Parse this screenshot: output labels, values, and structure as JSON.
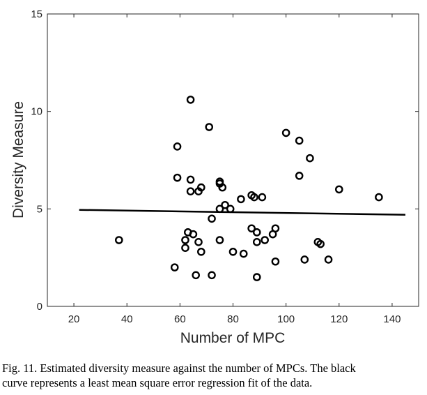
{
  "chart_data": {
    "type": "scatter",
    "xlabel": "Number of MPC",
    "ylabel": "Diversity Measure",
    "xlim": [
      10,
      150
    ],
    "ylim": [
      0,
      15
    ],
    "xticks": [
      20,
      40,
      60,
      80,
      100,
      120,
      140
    ],
    "yticks": [
      0,
      5,
      10,
      15
    ],
    "grid": false,
    "points": [
      [
        37,
        3.4
      ],
      [
        58,
        2.0
      ],
      [
        59,
        8.2
      ],
      [
        59,
        6.6
      ],
      [
        62,
        3.0
      ],
      [
        62,
        3.4
      ],
      [
        63,
        3.8
      ],
      [
        64,
        10.6
      ],
      [
        64,
        6.5
      ],
      [
        64,
        5.9
      ],
      [
        65,
        3.7
      ],
      [
        66,
        1.6
      ],
      [
        67,
        3.3
      ],
      [
        67,
        5.9
      ],
      [
        68,
        6.1
      ],
      [
        68,
        2.8
      ],
      [
        71,
        9.2
      ],
      [
        72,
        1.6
      ],
      [
        72,
        4.5
      ],
      [
        75,
        6.4
      ],
      [
        75,
        6.3
      ],
      [
        75,
        3.4
      ],
      [
        75,
        5.0
      ],
      [
        76,
        6.1
      ],
      [
        77,
        5.2
      ],
      [
        79,
        5.0
      ],
      [
        80,
        2.8
      ],
      [
        83,
        5.5
      ],
      [
        84,
        2.7
      ],
      [
        87,
        5.7
      ],
      [
        87,
        4.0
      ],
      [
        88,
        5.6
      ],
      [
        89,
        3.8
      ],
      [
        89,
        3.3
      ],
      [
        89,
        1.5
      ],
      [
        91,
        5.6
      ],
      [
        92,
        3.4
      ],
      [
        95,
        3.7
      ],
      [
        96,
        4.0
      ],
      [
        96,
        2.3
      ],
      [
        100,
        8.9
      ],
      [
        105,
        8.5
      ],
      [
        105,
        6.7
      ],
      [
        107,
        2.4
      ],
      [
        109,
        7.6
      ],
      [
        112,
        3.3
      ],
      [
        113,
        3.2
      ],
      [
        116,
        2.4
      ],
      [
        120,
        6.0
      ],
      [
        135,
        5.6
      ]
    ],
    "fit_line": {
      "x": [
        22,
        145
      ],
      "y": [
        4.95,
        4.7
      ]
    }
  },
  "caption": {
    "line1": "Fig. 11.   Estimated diversity measure against the number of MPCs. The black",
    "line2": "curve represents a least mean square error regression fit of the data."
  }
}
